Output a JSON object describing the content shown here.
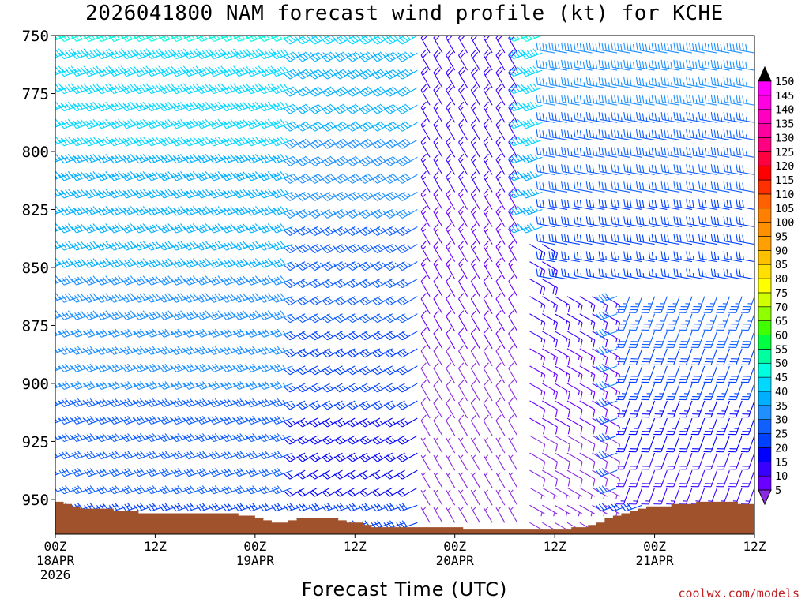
{
  "title": "2026041800 NAM forecast wind profile (kt) for KCHE",
  "credit": "coolwx.com/models",
  "colors": {
    "background": "#ffffff",
    "terrain": "#a0522d",
    "frame": "#000000"
  },
  "chart_data": {
    "type": "wind-barb-time-height",
    "title": "2026041800 NAM forecast wind profile (kt) for KCHE",
    "xlabel": "Forecast Time (UTC)",
    "ylabel": "",
    "x_units": "forecast hour",
    "xlim": [
      0,
      84
    ],
    "y_units": "hPa",
    "ylim": [
      965,
      750
    ],
    "y_ticks": [
      {
        "value": 750,
        "label": "750"
      },
      {
        "value": 775,
        "label": "775"
      },
      {
        "value": 800,
        "label": "800"
      },
      {
        "value": 825,
        "label": "825"
      },
      {
        "value": 850,
        "label": "850"
      },
      {
        "value": 875,
        "label": "875"
      },
      {
        "value": 900,
        "label": "900"
      },
      {
        "value": 925,
        "label": "925"
      },
      {
        "value": 950,
        "label": "950"
      }
    ],
    "x_ticks": [
      {
        "hour": 0,
        "lines": [
          "00Z",
          "18APR",
          "2026"
        ]
      },
      {
        "hour": 12,
        "lines": [
          "12Z"
        ]
      },
      {
        "hour": 24,
        "lines": [
          "00Z",
          "19APR"
        ]
      },
      {
        "hour": 36,
        "lines": [
          "12Z"
        ]
      },
      {
        "hour": 48,
        "lines": [
          "00Z",
          "20APR"
        ]
      },
      {
        "hour": 60,
        "lines": [
          "12Z"
        ]
      },
      {
        "hour": 72,
        "lines": [
          "00Z",
          "21APR"
        ]
      },
      {
        "hour": 84,
        "lines": [
          "12Z"
        ]
      }
    ],
    "surface_pressure": {
      "hours": [
        0,
        3,
        6,
        9,
        12,
        15,
        18,
        21,
        24,
        27,
        30,
        33,
        36,
        39,
        42,
        45,
        48,
        51,
        54,
        57,
        60,
        63,
        66,
        69,
        72,
        75,
        78,
        81,
        84
      ],
      "hPa": [
        950,
        954,
        954,
        955,
        956,
        956,
        956,
        956,
        957,
        960,
        958,
        958,
        960,
        962,
        962,
        962,
        962,
        963,
        963,
        963,
        963,
        962,
        959,
        955,
        953,
        952,
        951,
        951,
        952
      ]
    },
    "colorbar": {
      "units": "kt",
      "levels": [
        5,
        10,
        15,
        20,
        25,
        30,
        35,
        40,
        45,
        50,
        55,
        60,
        65,
        70,
        75,
        80,
        85,
        90,
        95,
        100,
        105,
        110,
        115,
        120,
        125,
        130,
        135,
        140,
        145,
        150
      ],
      "colors": [
        "#8a2be2",
        "#6a00ff",
        "#3a00ff",
        "#0000ff",
        "#0040ff",
        "#1060ff",
        "#1e90ff",
        "#00b0ff",
        "#00d8ff",
        "#00ffe0",
        "#00ffa0",
        "#00ff40",
        "#40ff00",
        "#90ff00",
        "#d0ff00",
        "#ffff00",
        "#ffe000",
        "#ffc000",
        "#ffa000",
        "#ff9000",
        "#ff8000",
        "#ff6000",
        "#ff3000",
        "#ff0000",
        "#ff0040",
        "#ff0080",
        "#ff00a0",
        "#ff00c0",
        "#ff00e0",
        "#ff00ff"
      ]
    },
    "wind_regimes": [
      {
        "hours": [
          0,
          30
        ],
        "hPa": [
          750,
          950
        ],
        "speed_kt": [
          30,
          50
        ],
        "direction_deg": 250,
        "note": "strong southwest to west flow"
      },
      {
        "hours": [
          30,
          44
        ],
        "hPa": [
          750,
          950
        ],
        "speed_kt": [
          20,
          45
        ],
        "direction_deg": 240,
        "note": "southwest flow weakening with height decrease"
      },
      {
        "hours": [
          44,
          56
        ],
        "hPa": [
          750,
          960
        ],
        "speed_kt": [
          5,
          20
        ],
        "direction_deg": 330,
        "note": "light northwest flow"
      },
      {
        "hours": [
          56,
          66
        ],
        "hPa": [
          840,
          962
        ],
        "speed_kt": [
          5,
          20
        ],
        "direction_deg": 120,
        "note": "light easterly and southeasterly flow"
      },
      {
        "hours": [
          60,
          84
        ],
        "hPa": [
          750,
          860
        ],
        "speed_kt": [
          25,
          40
        ],
        "direction_deg": 280,
        "note": "westerly flow returning aloft"
      },
      {
        "hours": [
          68,
          84
        ],
        "hPa": [
          860,
          950
        ],
        "speed_kt": [
          15,
          35
        ],
        "direction_deg": 200,
        "note": "southerly flow near surface"
      }
    ]
  },
  "axes": {
    "xlabel": "Forecast Time (UTC)"
  }
}
